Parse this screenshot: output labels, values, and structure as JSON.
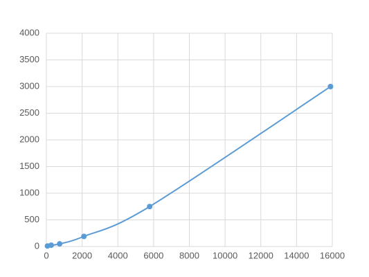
{
  "chart_data": {
    "type": "scatter",
    "x": [
      60,
      270,
      740,
      2100,
      5780,
      15900
    ],
    "series": [
      {
        "color": "#5b9bd5",
        "values": [
          10,
          25,
          50,
          190,
          750,
          3000
        ]
      }
    ],
    "xlim": [
      0,
      16000
    ],
    "xticks": [
      0,
      2000,
      4000,
      6000,
      8000,
      10000,
      12000,
      14000,
      16000
    ],
    "ylim": [
      0,
      4000
    ],
    "yticks": [
      0,
      500,
      1000,
      1500,
      2000,
      2500,
      3000,
      3500,
      4000
    ],
    "grid": true,
    "smooth_line": true
  }
}
